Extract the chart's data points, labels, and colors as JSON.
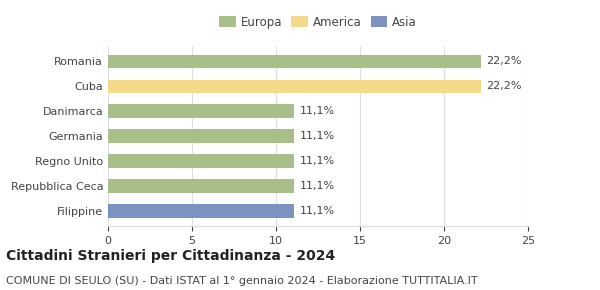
{
  "categories": [
    "Filippine",
    "Repubblica Ceca",
    "Regno Unito",
    "Germania",
    "Danimarca",
    "Cuba",
    "Romania"
  ],
  "values": [
    11.1,
    11.1,
    11.1,
    11.1,
    11.1,
    22.2,
    22.2
  ],
  "colors": [
    "#7b93c0",
    "#a8bf8a",
    "#a8bf8a",
    "#a8bf8a",
    "#a8bf8a",
    "#f5d98b",
    "#a8bf8a"
  ],
  "labels": [
    "11,1%",
    "11,1%",
    "11,1%",
    "11,1%",
    "11,1%",
    "22,2%",
    "22,2%"
  ],
  "legend": [
    {
      "label": "Europa",
      "color": "#a8bf8a"
    },
    {
      "label": "America",
      "color": "#f5d98b"
    },
    {
      "label": "Asia",
      "color": "#7b93c0"
    }
  ],
  "xlim": [
    0,
    25
  ],
  "xticks": [
    0,
    5,
    10,
    15,
    20,
    25
  ],
  "title": "Cittadini Stranieri per Cittadinanza - 2024",
  "subtitle": "COMUNE DI SEULO (SU) - Dati ISTAT al 1° gennaio 2024 - Elaborazione TUTTITALIA.IT",
  "title_fontsize": 10,
  "subtitle_fontsize": 8,
  "label_fontsize": 8,
  "tick_fontsize": 8,
  "bar_height": 0.55,
  "background_color": "#ffffff",
  "grid_color": "#dddddd",
  "text_color": "#444444"
}
